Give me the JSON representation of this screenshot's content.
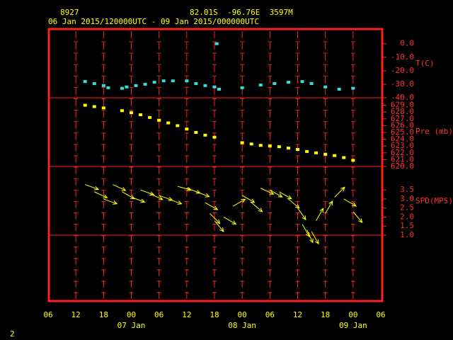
{
  "header": {
    "station": "8927",
    "location": "82.01S  -96.76E  3597M",
    "period": "06 Jan 2015/120000UTC - 09 Jan 2015/000000UTC",
    "page": "2"
  },
  "xaxis": {
    "xlim": [
      0,
      72
    ],
    "xticks": [
      {
        "value": 0,
        "label": "06"
      },
      {
        "value": 6,
        "label": "12"
      },
      {
        "value": 12,
        "label": "18"
      },
      {
        "value": 18,
        "label": "00"
      },
      {
        "value": 24,
        "label": "06"
      },
      {
        "value": 30,
        "label": "12"
      },
      {
        "value": 36,
        "label": "18"
      },
      {
        "value": 42,
        "label": "00"
      },
      {
        "value": 48,
        "label": "06"
      },
      {
        "value": 54,
        "label": "12"
      },
      {
        "value": 60,
        "label": "18"
      },
      {
        "value": 66,
        "label": "00"
      },
      {
        "value": 72,
        "label": "06"
      }
    ],
    "day_labels": [
      {
        "value": 18,
        "label": "07 Jan"
      },
      {
        "value": 42,
        "label": "08 Jan"
      },
      {
        "value": 66,
        "label": "09 Jan"
      }
    ]
  },
  "chart_data": [
    {
      "type": "scatter",
      "ylabel": "T(C)",
      "color": "#33dddd",
      "ylim": [
        -40,
        11.4
      ],
      "yticks": [
        {
          "value": 0,
          "label": "0.0"
        },
        {
          "value": -10,
          "label": "-10.0"
        },
        {
          "value": -20,
          "label": "-20.0"
        },
        {
          "value": -30,
          "label": "-30.0"
        },
        {
          "value": -40,
          "label": "-40.0"
        }
      ],
      "x": [
        8,
        10,
        12,
        13,
        16,
        17,
        19,
        21,
        23,
        25,
        27,
        30,
        32,
        34,
        36,
        36.5,
        37,
        42,
        46,
        49,
        52,
        55,
        57,
        60,
        63,
        66
      ],
      "values": [
        -28,
        -29.5,
        -31,
        -32.6,
        -33,
        -32,
        -31,
        -30,
        -28.5,
        -27.5,
        -27.5,
        -27.5,
        -29.5,
        -31,
        -32,
        0,
        -33.7,
        -32.6,
        -30.6,
        -29.5,
        -28.5,
        -28,
        -29.5,
        -32,
        -33.7,
        -33
      ]
    },
    {
      "type": "scatter",
      "ylabel": "Pre (mb)",
      "color": "#ffff00",
      "ylim": [
        620,
        630.1
      ],
      "yticks": [
        {
          "value": 629,
          "label": "629.0"
        },
        {
          "value": 628,
          "label": "628.0"
        },
        {
          "value": 627,
          "label": "627.0"
        },
        {
          "value": 626,
          "label": "626.0"
        },
        {
          "value": 625,
          "label": "625.0"
        },
        {
          "value": 624,
          "label": "624.0"
        },
        {
          "value": 623,
          "label": "623.0"
        },
        {
          "value": 622,
          "label": "622.0"
        },
        {
          "value": 621,
          "label": "621.0"
        },
        {
          "value": 620,
          "label": "620.0"
        }
      ],
      "x": [
        8,
        10,
        12,
        16,
        18,
        20,
        22,
        24,
        26,
        28,
        30,
        32,
        34,
        36,
        42,
        44,
        46,
        48,
        50,
        52,
        54,
        56,
        58,
        60,
        62,
        64,
        66
      ],
      "values": [
        629,
        628.8,
        628.6,
        628.2,
        627.9,
        627.6,
        627.2,
        626.8,
        626.4,
        626,
        625.5,
        625,
        624.6,
        624.3,
        623.5,
        623.3,
        623.1,
        623,
        622.9,
        622.7,
        622.5,
        622.2,
        622,
        621.8,
        621.6,
        621.3,
        620.9
      ]
    },
    {
      "type": "vector",
      "ylabel": "SPD(MPS)",
      "color": "#ffff00",
      "ylim": [
        1,
        4.8
      ],
      "yticks": [
        {
          "value": 3.5,
          "label": "3.5"
        },
        {
          "value": 3,
          "label": "3.0"
        },
        {
          "value": 2.5,
          "label": "2.5"
        },
        {
          "value": 2,
          "label": "2.0"
        },
        {
          "value": 1.5,
          "label": "1.5"
        },
        {
          "value": 1,
          "label": "1.0"
        }
      ],
      "x": [
        8,
        10,
        12,
        14,
        16,
        18,
        20,
        22,
        24,
        26,
        28,
        30,
        32,
        34,
        35,
        36,
        38,
        40,
        42,
        44,
        46,
        48,
        50,
        52,
        54,
        55,
        56,
        57,
        58,
        60,
        62,
        64,
        66
      ],
      "values": [
        3.8,
        3.4,
        3.0,
        3.8,
        3.4,
        3.1,
        3.5,
        3.3,
        3.2,
        3.0,
        3.7,
        3.6,
        3.4,
        2.8,
        2.2,
        1.8,
        2.0,
        2.6,
        3.2,
        2.8,
        3.6,
        3.5,
        3.4,
        3.0,
        2.5,
        1.6,
        1.3,
        1.2,
        1.8,
        2.2,
        3.1,
        3.0,
        2.3
      ],
      "direction": [
        20,
        25,
        20,
        25,
        30,
        20,
        20,
        25,
        20,
        20,
        15,
        20,
        20,
        30,
        45,
        50,
        30,
        -30,
        30,
        40,
        25,
        30,
        30,
        40,
        55,
        60,
        65,
        60,
        -60,
        -60,
        -45,
        30,
        50
      ]
    }
  ]
}
